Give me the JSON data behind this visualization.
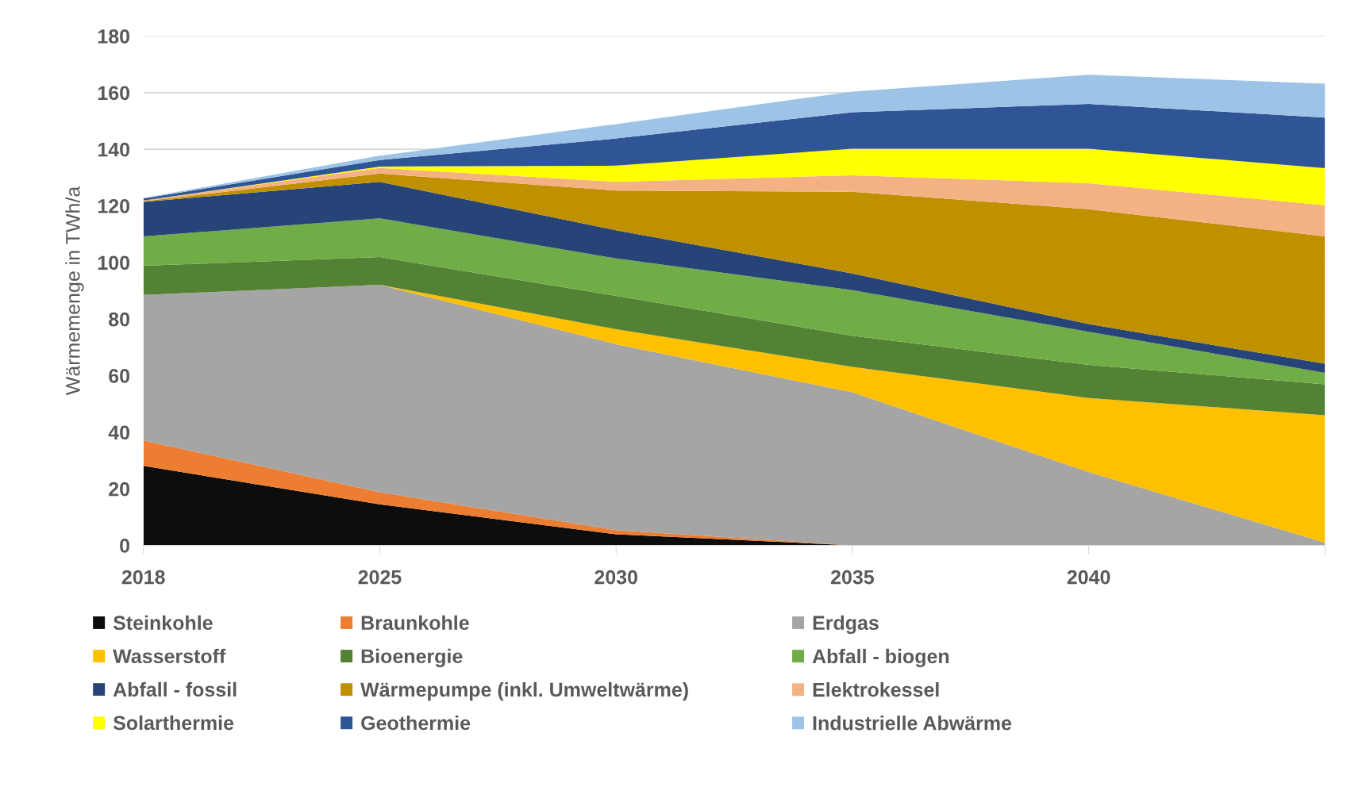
{
  "chart_data": {
    "type": "area",
    "stacked": true,
    "ylabel": "Wärmemenge in TWh/a",
    "categories": [
      "2018",
      "2025",
      "2030",
      "2035",
      "2040",
      null
    ],
    "ylim": [
      0,
      180
    ],
    "yticks": [
      0,
      20,
      40,
      60,
      80,
      100,
      120,
      140,
      160,
      180
    ],
    "grid": "y",
    "legend": "bottom",
    "series": [
      {
        "name": "Steinkohle",
        "color": "#0d0d0d",
        "values": [
          28.1,
          14.5,
          3.9,
          0,
          0,
          0
        ]
      },
      {
        "name": "Braunkohle",
        "color": "#ed7d31",
        "values": [
          9.0,
          4.3,
          1.5,
          0,
          0,
          0
        ]
      },
      {
        "name": "Erdgas",
        "color": "#a5a5a5",
        "values": [
          51.4,
          73.3,
          65.7,
          54.1,
          25.9,
          1.0
        ]
      },
      {
        "name": "Wasserstoff",
        "color": "#ffc000",
        "values": [
          0,
          0,
          5.3,
          9.0,
          26.2,
          45.0
        ]
      },
      {
        "name": "Bioenergie",
        "color": "#548235",
        "values": [
          10.3,
          9.8,
          11.8,
          11.0,
          11.7,
          10.9
        ]
      },
      {
        "name": "Abfall - biogen",
        "color": "#70ad47",
        "values": [
          10.4,
          13.7,
          13.2,
          16.1,
          11.7,
          4.1
        ]
      },
      {
        "name": "Abfall - fossil",
        "color": "#264478",
        "values": [
          12.2,
          12.9,
          10.0,
          5.9,
          2.7,
          3.2
        ]
      },
      {
        "name": "Wärmepumpe (inkl. Umweltwärme)",
        "color": "#bf9000",
        "values": [
          0.2,
          2.9,
          14.0,
          28.9,
          40.6,
          45.0
        ]
      },
      {
        "name": "Elektrokessel",
        "color": "#f4b183",
        "values": [
          0.3,
          2.0,
          3.1,
          5.8,
          9.2,
          11.0
        ]
      },
      {
        "name": "Solarthermie",
        "color": "#ffff00",
        "values": [
          0,
          0.5,
          5.7,
          9.4,
          12.2,
          13.1
        ]
      },
      {
        "name": "Geothermie",
        "color": "#2f5597",
        "values": [
          0.7,
          2.3,
          9.6,
          12.9,
          15.8,
          17.9
        ]
      },
      {
        "name": "Industrielle Abwärme",
        "color": "#9dc3e6",
        "values": [
          0.2,
          1.5,
          5.1,
          7.3,
          10.3,
          12.0
        ]
      }
    ]
  }
}
